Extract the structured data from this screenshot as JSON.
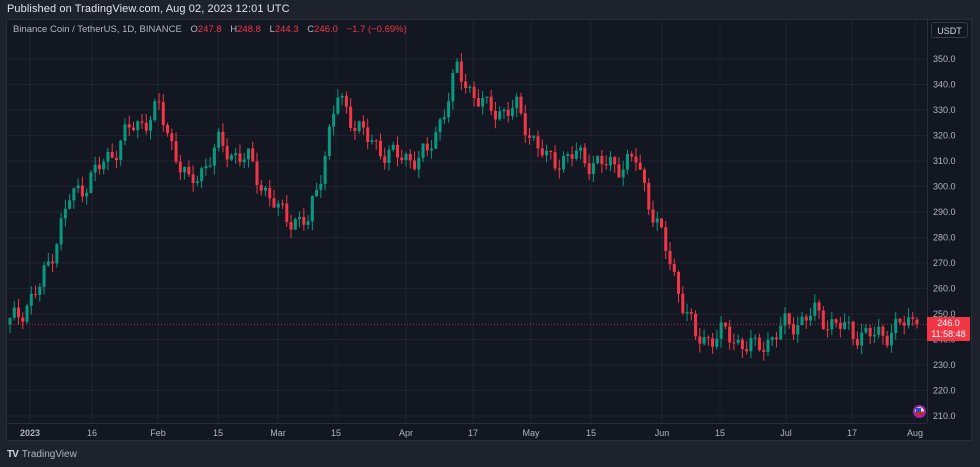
{
  "header": {
    "published": "Published on TradingView.com, Aug 02, 2023 12:01 UTC"
  },
  "legend": {
    "symbol": "Binance Coin / TetherUS, 1D, BINANCE",
    "open_label": "O",
    "open": "247.8",
    "high_label": "H",
    "high": "248.8",
    "low_label": "L",
    "low": "244.3",
    "close_label": "C",
    "close": "246.0",
    "change": "−1.7 (−0.69%)"
  },
  "price_axis": {
    "currency": "USDT",
    "ticks": [
      "350.0",
      "340.0",
      "330.0",
      "320.0",
      "310.0",
      "300.0",
      "290.0",
      "280.0",
      "270.0",
      "260.0",
      "250.0",
      "240.0",
      "230.0",
      "220.0",
      "210.0"
    ]
  },
  "last_price": {
    "value": "246.0",
    "countdown": "11:58:48"
  },
  "time_axis": {
    "labels": [
      "2023",
      "16",
      "Feb",
      "15",
      "Mar",
      "15",
      "Apr",
      "17",
      "May",
      "15",
      "Jun",
      "15",
      "Jul",
      "17",
      "Aug"
    ]
  },
  "footer": {
    "brand": "TradingView"
  },
  "colors": {
    "up": "#089981",
    "down": "#f23645",
    "background": "#131722",
    "grid": "#1f2330",
    "last_price_line": "#f23645"
  },
  "chart_data": {
    "type": "candlestick",
    "title": "Binance Coin / TetherUS, 1D, BINANCE",
    "xlabel": "",
    "ylabel": "USDT",
    "ylim": [
      205,
      355
    ],
    "x_range": [
      "2023-01-01",
      "2023-08-02"
    ],
    "grid": true,
    "last": {
      "open": 247.8,
      "high": 248.8,
      "low": 244.3,
      "close": 246.0,
      "change": -1.7,
      "change_pct": -0.69
    },
    "weekly_closes_approx": {
      "x": [
        "Jan 01",
        "Jan 08",
        "Jan 15",
        "Jan 22",
        "Jan 29",
        "Feb 05",
        "Feb 12",
        "Feb 19",
        "Feb 26",
        "Mar 05",
        "Mar 12",
        "Mar 19",
        "Mar 26",
        "Apr 02",
        "Apr 09",
        "Apr 16",
        "Apr 23",
        "Apr 30",
        "May 07",
        "May 14",
        "May 21",
        "May 28",
        "Jun 04",
        "Jun 11",
        "Jun 18",
        "Jun 25",
        "Jul 02",
        "Jul 09",
        "Jul 16",
        "Jul 23",
        "Jul 30"
      ],
      "values": [
        246,
        260,
        295,
        307,
        322,
        330,
        300,
        316,
        310,
        290,
        285,
        335,
        318,
        311,
        312,
        345,
        330,
        330,
        310,
        312,
        308,
        310,
        275,
        240,
        242,
        236,
        245,
        250,
        244,
        241,
        246
      ]
    }
  }
}
